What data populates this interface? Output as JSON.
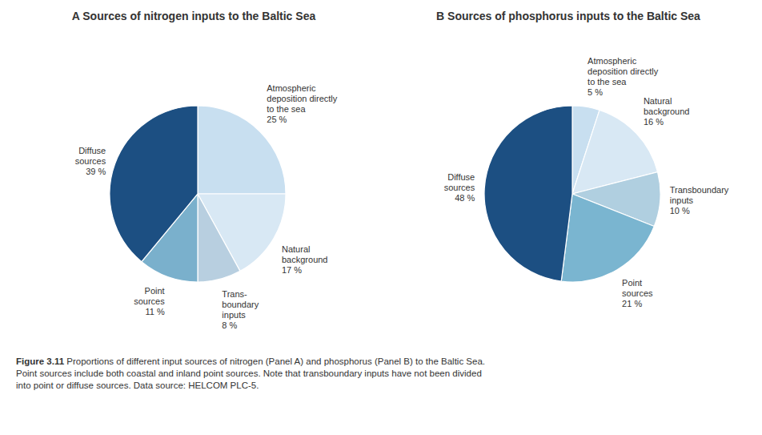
{
  "chart_data": [
    {
      "type": "pie",
      "title": "A  Sources of nitrogen inputs to the Baltic Sea",
      "categories": [
        "Atmospheric\ndeposition directly\nto the sea",
        "Natural\nbackground",
        "Trans-\nboundary\ninputs",
        "Point\nsources",
        "Diffuse\nsources"
      ],
      "values": [
        25,
        17,
        8,
        11,
        39
      ],
      "value_labels": [
        "25 %",
        "17 %",
        "8 %",
        "11 %",
        "39 %"
      ],
      "colors": [
        "#c8dff0",
        "#d8e8f4",
        "#b8cfe0",
        "#7ab0cc",
        "#1c4f82"
      ],
      "data_labels": true
    },
    {
      "type": "pie",
      "title": "B  Sources of phosphorus inputs to the Baltic Sea",
      "categories": [
        "Atmospheric\ndeposition directly\nto the sea",
        "Natural\nbackground",
        "Transboundary\ninputs",
        "Point\nsources",
        "Diffuse\nsources"
      ],
      "values": [
        5,
        16,
        10,
        21,
        48
      ],
      "value_labels": [
        "5 %",
        "16 %",
        "10 %",
        "21 %",
        "48 %"
      ],
      "colors": [
        "#c8dff0",
        "#d8e8f4",
        "#b0cfe0",
        "#7ab5d0",
        "#1c4f82"
      ],
      "data_labels": true
    }
  ],
  "caption": [
    "Figure 3.11",
    " Proportions of different input sources of nitrogen (Panel A) and phosphorus (Panel B) to the Baltic Sea.\nPoint sources include both coastal and inland point sources. Note that transboundary inputs have not been divided\ninto point or diffuse sources. Data source: HELCOM PLC-5."
  ]
}
